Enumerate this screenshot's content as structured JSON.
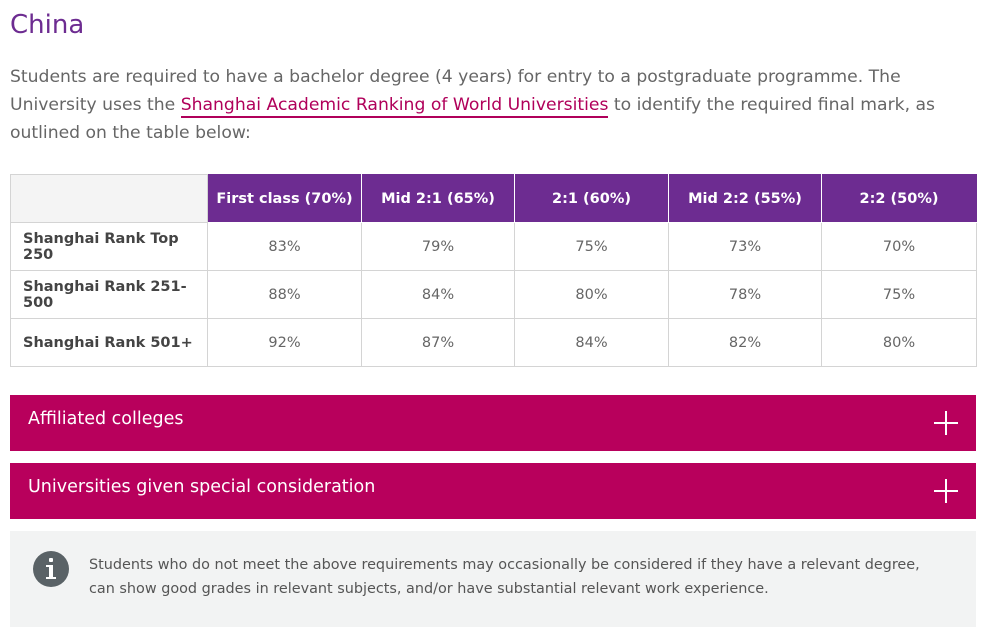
{
  "heading": "China",
  "intro": {
    "before_link": "Students are required to have a bachelor degree (4 years) for entry to a postgraduate programme. The University uses the ",
    "link_text": "Shanghai Academic Ranking of World Universities",
    "after_link": " to identify the required final mark, as outlined on the table below:"
  },
  "table": {
    "columns": [
      "First class (70%)",
      "Mid 2:1 (65%)",
      "2:1 (60%)",
      "Mid 2:2 (55%)",
      "2:2 (50%)"
    ],
    "rows": [
      {
        "label": "Shanghai Rank Top 250",
        "values": [
          "83%",
          "79%",
          "75%",
          "73%",
          "70%"
        ]
      },
      {
        "label": "Shanghai Rank 251-500",
        "values": [
          "88%",
          "84%",
          "80%",
          "78%",
          "75%"
        ]
      },
      {
        "label": "Shanghai Rank 501+",
        "values": [
          "92%",
          "87%",
          "84%",
          "82%",
          "80%"
        ]
      }
    ]
  },
  "accordions": [
    {
      "label": "Affiliated colleges",
      "icon": "plus-icon"
    },
    {
      "label": "Universities given special consideration",
      "icon": "plus-icon"
    }
  ],
  "info_note": {
    "icon": "info-icon",
    "text": "Students who do not meet the above requirements may occasionally be considered if they have a relevant degree, can show good grades in relevant subjects, and/or have substantial relevant work experience."
  },
  "colors": {
    "purple": "#6d2c91",
    "magenta": "#b8005c",
    "link": "#b0005a",
    "info_bg": "#f2f3f3"
  }
}
